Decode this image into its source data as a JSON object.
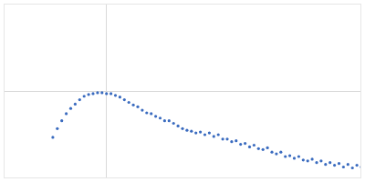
{
  "chart_data": {
    "type": "scatter",
    "color": "#3a6bbf",
    "marker": "circle",
    "grid": true,
    "tick_labels": false,
    "xlim": [
      0,
      0.4
    ],
    "xticks": [
      0.115
    ],
    "ylim": [
      0,
      2
    ],
    "yticks": [
      1
    ],
    "x": [
      0.055,
      0.06,
      0.065,
      0.07,
      0.075,
      0.08,
      0.085,
      0.09,
      0.095,
      0.1,
      0.105,
      0.11,
      0.115,
      0.12,
      0.125,
      0.13,
      0.135,
      0.14,
      0.145,
      0.15,
      0.155,
      0.16,
      0.165,
      0.17,
      0.175,
      0.18,
      0.185,
      0.19,
      0.195,
      0.2,
      0.205,
      0.21,
      0.215,
      0.22,
      0.225,
      0.23,
      0.235,
      0.24,
      0.245,
      0.25,
      0.255,
      0.26,
      0.265,
      0.27,
      0.275,
      0.28,
      0.285,
      0.29,
      0.295,
      0.3,
      0.305,
      0.31,
      0.315,
      0.32,
      0.325,
      0.33,
      0.335,
      0.34,
      0.345,
      0.35,
      0.355,
      0.36,
      0.365,
      0.37,
      0.375,
      0.38,
      0.385,
      0.39,
      0.395,
      0.4
    ],
    "values": [
      0.47,
      0.57,
      0.66,
      0.74,
      0.8,
      0.85,
      0.9,
      0.94,
      0.96,
      0.97,
      0.98,
      0.98,
      0.97,
      0.97,
      0.95,
      0.93,
      0.9,
      0.87,
      0.84,
      0.82,
      0.78,
      0.75,
      0.74,
      0.71,
      0.69,
      0.66,
      0.66,
      0.63,
      0.6,
      0.57,
      0.55,
      0.54,
      0.52,
      0.53,
      0.5,
      0.52,
      0.48,
      0.5,
      0.45,
      0.45,
      0.42,
      0.43,
      0.39,
      0.4,
      0.36,
      0.38,
      0.34,
      0.33,
      0.35,
      0.3,
      0.28,
      0.3,
      0.25,
      0.26,
      0.23,
      0.25,
      0.21,
      0.2,
      0.22,
      0.18,
      0.2,
      0.16,
      0.18,
      0.15,
      0.17,
      0.13,
      0.16,
      0.12,
      0.15,
      0.13
    ]
  }
}
